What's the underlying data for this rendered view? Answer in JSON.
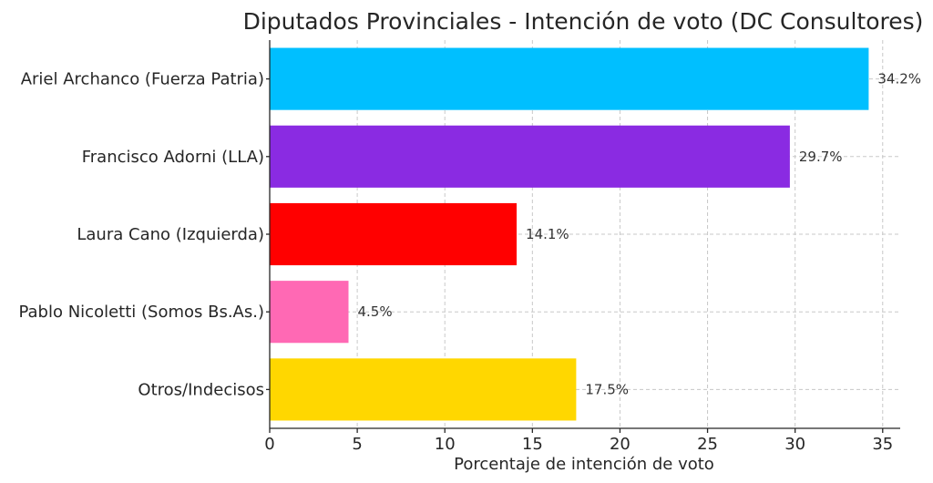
{
  "chart_data": {
    "type": "bar",
    "orientation": "horizontal",
    "title": "Diputados Provinciales - Intención de voto (DC Consultores)",
    "xlabel": "Porcentaje de intención de voto",
    "ylabel": "",
    "xlim": [
      0,
      36
    ],
    "x_ticks": [
      0,
      5,
      10,
      15,
      20,
      25,
      30,
      35
    ],
    "x_tick_labels": [
      "0",
      "5",
      "10",
      "15",
      "20",
      "25",
      "30",
      "35"
    ],
    "grid": true,
    "categories": [
      "Ariel Archanco (Fuerza Patria)",
      "Francisco Adorni (LLA)",
      "Laura Cano (Izquierda)",
      "Pablo Nicoletti (Somos Bs.As.)",
      "Otros/Indecisos"
    ],
    "values": [
      34.2,
      29.7,
      14.1,
      4.5,
      17.5
    ],
    "data_labels": [
      "34.2%",
      "29.7%",
      "14.1%",
      "4.5%",
      "17.5%"
    ],
    "colors": [
      "#00bfff",
      "#8a2be2",
      "#ff0000",
      "#ff69b4",
      "#ffd700"
    ]
  }
}
